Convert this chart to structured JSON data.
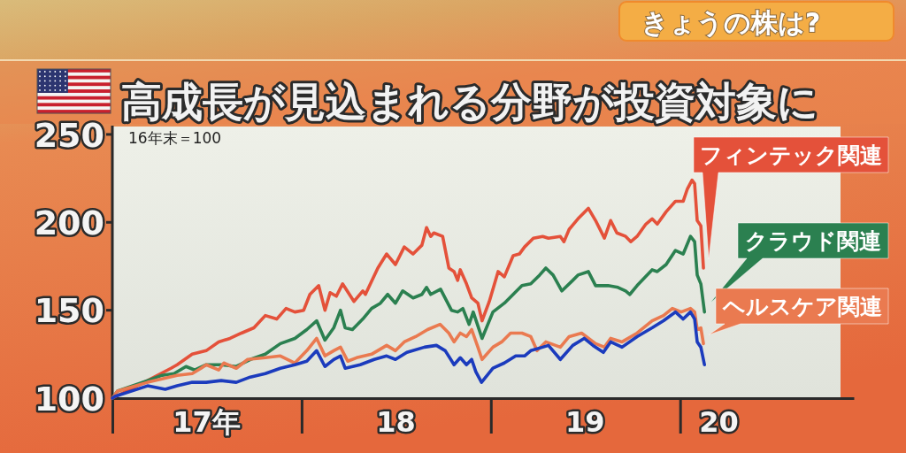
{
  "chart_data": {
    "type": "line",
    "title": "高成長が見込まれる分野が投資対象に",
    "annotations": [
      "16年末＝100",
      "きょうの株は?"
    ],
    "xlim": [
      "2017-01-01",
      "2020-12-01"
    ],
    "ylim": [
      100,
      255
    ],
    "xticks": [
      {
        "value": "2017-01-01",
        "label": null
      },
      {
        "value": "2017-07-01",
        "label": "17年"
      },
      {
        "value": "2018-01-01",
        "label": null
      },
      {
        "value": "2018-07-01",
        "label": "18"
      },
      {
        "value": "2019-01-01",
        "label": null
      },
      {
        "value": "2019-07-01",
        "label": "19"
      },
      {
        "value": "2020-01-01",
        "label": null
      },
      {
        "value": "2020-03-15",
        "label": "20"
      }
    ],
    "yticks": [
      100,
      150,
      200,
      250
    ],
    "series": [
      {
        "name": "フィンテック関連",
        "color": "#e4513a",
        "x": [
          "2017-01-01",
          "2017-03-10",
          "2017-04-24",
          "2017-05-06",
          "2017-06-04",
          "2017-07-01",
          "2017-07-25",
          "2017-08-16",
          "2017-09-07",
          "2017-10-01",
          "2017-10-23",
          "2017-11-14",
          "2017-12-02",
          "2017-12-19",
          "2018-01-05",
          "2018-01-17",
          "2018-02-03",
          "2018-02-15",
          "2018-02-25",
          "2018-03-09",
          "2018-03-21",
          "2018-04-12",
          "2018-04-29",
          "2018-05-04",
          "2018-05-28",
          "2018-06-14",
          "2018-07-01",
          "2018-07-18",
          "2018-08-04",
          "2018-08-21",
          "2018-08-30",
          "2018-09-07",
          "2018-09-13",
          "2018-09-30",
          "2018-10-12",
          "2018-10-22",
          "2018-10-29",
          "2018-11-03",
          "2018-11-15",
          "2018-11-25",
          "2018-12-07",
          "2018-12-15",
          "2018-12-29",
          "2019-01-15",
          "2019-01-27",
          "2019-02-13",
          "2019-02-25",
          "2019-03-07",
          "2019-03-24",
          "2019-04-11",
          "2019-04-22",
          "2019-05-15",
          "2019-05-22",
          "2019-06-01",
          "2019-06-18",
          "2019-07-08",
          "2019-07-22",
          "2019-08-08",
          "2019-08-20",
          "2019-09-01",
          "2019-09-18",
          "2019-09-28",
          "2019-10-10",
          "2019-10-27",
          "2019-11-08",
          "2019-11-18",
          "2019-12-05",
          "2019-12-23",
          "2020-01-07",
          "2020-01-15",
          "2020-01-24",
          "2020-01-29",
          "2020-02-03",
          "2020-02-10",
          "2020-02-15"
        ],
        "values": [
          100,
          110,
          117,
          119,
          125,
          127,
          132,
          134,
          137,
          140,
          147,
          145,
          151,
          149,
          150,
          159,
          164,
          150,
          160,
          158,
          165,
          155,
          161,
          159,
          174,
          182,
          176,
          186,
          182,
          187,
          197,
          192,
          194,
          192,
          174,
          172,
          167,
          173,
          165,
          157,
          154,
          144,
          155,
          172,
          169,
          181,
          182,
          186,
          191,
          192,
          191,
          192,
          189,
          196,
          202,
          208,
          201,
          191,
          201,
          194,
          192,
          189,
          192,
          199,
          202,
          199,
          206,
          212,
          212,
          219,
          224,
          222,
          201,
          198,
          174
        ]
      },
      {
        "name": "クラウド関連",
        "color": "#2b8050",
        "x": [
          "2017-01-01",
          "2017-01-11",
          "2017-03-10",
          "2017-04-07",
          "2017-04-30",
          "2017-05-23",
          "2017-06-09",
          "2017-07-01",
          "2017-07-30",
          "2017-08-28",
          "2017-09-24",
          "2017-10-23",
          "2017-11-21",
          "2017-12-19",
          "2018-01-11",
          "2018-01-30",
          "2018-02-15",
          "2018-03-04",
          "2018-03-17",
          "2018-03-26",
          "2018-04-09",
          "2018-04-29",
          "2018-05-16",
          "2018-06-02",
          "2018-06-16",
          "2018-07-01",
          "2018-07-15",
          "2018-08-04",
          "2018-08-21",
          "2018-08-30",
          "2018-09-07",
          "2018-09-26",
          "2018-10-17",
          "2018-10-29",
          "2018-11-08",
          "2018-11-20",
          "2018-11-28",
          "2018-12-15",
          "2019-01-05",
          "2019-01-27",
          "2019-02-13",
          "2019-03-02",
          "2019-03-19",
          "2019-04-05",
          "2019-04-17",
          "2019-05-01",
          "2019-05-18",
          "2019-06-08",
          "2019-06-18",
          "2019-07-08",
          "2019-07-22",
          "2019-08-15",
          "2019-09-03",
          "2019-09-18",
          "2019-09-26",
          "2019-10-10",
          "2019-11-08",
          "2019-11-18",
          "2019-12-05",
          "2019-12-23",
          "2020-01-07",
          "2020-01-21",
          "2020-01-29",
          "2020-02-03",
          "2020-02-10",
          "2020-02-17"
        ],
        "values": [
          100,
          104,
          110,
          113,
          114,
          118,
          116,
          119,
          119,
          118,
          122,
          125,
          131,
          134,
          139,
          144,
          133,
          140,
          150,
          140,
          139,
          145,
          151,
          154,
          159,
          154,
          161,
          157,
          159,
          163,
          159,
          162,
          150,
          149,
          151,
          142,
          149,
          134,
          149,
          154,
          159,
          164,
          165,
          170,
          174,
          170,
          161,
          167,
          170,
          172,
          164,
          164,
          163,
          161,
          159,
          164,
          173,
          172,
          176,
          184,
          182,
          192,
          189,
          170,
          165,
          149
        ]
      },
      {
        "name": "ヘルスケア関連",
        "color": "#ea7a50",
        "x": [
          "2017-01-01",
          "2017-01-11",
          "2017-03-10",
          "2017-05-06",
          "2017-06-04",
          "2017-06-21",
          "2017-07-01",
          "2017-07-25",
          "2017-08-04",
          "2017-08-28",
          "2017-09-19",
          "2017-10-23",
          "2017-11-21",
          "2017-12-19",
          "2018-01-11",
          "2018-01-30",
          "2018-02-15",
          "2018-03-04",
          "2018-03-17",
          "2018-03-31",
          "2018-04-17",
          "2018-05-16",
          "2018-06-14",
          "2018-07-01",
          "2018-07-18",
          "2018-08-09",
          "2018-09-01",
          "2018-09-25",
          "2018-10-12",
          "2018-10-22",
          "2018-11-03",
          "2018-11-15",
          "2018-11-25",
          "2018-12-07",
          "2018-12-15",
          "2019-01-05",
          "2019-01-22",
          "2019-02-08",
          "2019-03-02",
          "2019-03-19",
          "2019-03-31",
          "2019-04-17",
          "2019-05-15",
          "2019-06-01",
          "2019-06-25",
          "2019-07-22",
          "2019-08-08",
          "2019-08-20",
          "2019-09-11",
          "2019-10-10",
          "2019-11-08",
          "2019-11-30",
          "2019-12-17",
          "2020-01-03",
          "2020-01-21",
          "2020-01-29",
          "2020-02-03",
          "2020-02-10",
          "2020-02-15"
        ],
        "values": [
          100,
          104,
          109,
          113,
          114,
          117,
          119,
          116,
          120,
          117,
          122,
          123,
          124,
          120,
          127,
          134,
          124,
          127,
          129,
          121,
          123,
          125,
          130,
          127,
          132,
          135,
          139,
          142,
          137,
          132,
          137,
          135,
          139,
          129,
          122,
          129,
          132,
          137,
          137,
          135,
          127,
          132,
          129,
          135,
          137,
          131,
          129,
          134,
          132,
          137,
          144,
          147,
          151,
          149,
          151,
          149,
          139,
          140,
          131
        ]
      },
      {
        "color": "#1b3bbd",
        "x": [
          "2017-01-01",
          "2017-01-06",
          "2017-03-10",
          "2017-04-13",
          "2017-05-06",
          "2017-06-04",
          "2017-07-01",
          "2017-07-30",
          "2017-08-28",
          "2017-09-24",
          "2017-10-23",
          "2017-11-21",
          "2017-12-19",
          "2018-01-11",
          "2018-01-30",
          "2018-02-15",
          "2018-03-04",
          "2018-03-17",
          "2018-03-26",
          "2018-04-24",
          "2018-05-21",
          "2018-06-14",
          "2018-07-01",
          "2018-07-23",
          "2018-08-26",
          "2018-09-18",
          "2018-10-05",
          "2018-10-22",
          "2018-11-03",
          "2018-11-15",
          "2018-11-25",
          "2018-12-03",
          "2018-12-14",
          "2019-01-05",
          "2019-01-27",
          "2019-02-18",
          "2019-03-07",
          "2019-03-19",
          "2019-04-11",
          "2019-04-22",
          "2019-05-15",
          "2019-06-08",
          "2019-06-30",
          "2019-07-17",
          "2019-08-06",
          "2019-08-20",
          "2019-09-11",
          "2019-10-10",
          "2019-11-08",
          "2019-11-30",
          "2019-12-23",
          "2020-01-07",
          "2020-01-21",
          "2020-01-29",
          "2020-02-03",
          "2020-02-10",
          "2020-02-17"
        ],
        "values": [
          100,
          101,
          107,
          105,
          107,
          109,
          109,
          110,
          109,
          112,
          114,
          117,
          119,
          121,
          127,
          118,
          122,
          124,
          117,
          119,
          122,
          124,
          122,
          126,
          129,
          130,
          127,
          119,
          123,
          119,
          122,
          115,
          109,
          117,
          120,
          124,
          124,
          127,
          129,
          130,
          122,
          130,
          134,
          130,
          126,
          132,
          129,
          135,
          140,
          144,
          149,
          145,
          149,
          145,
          132,
          129,
          119
        ]
      }
    ]
  }
}
